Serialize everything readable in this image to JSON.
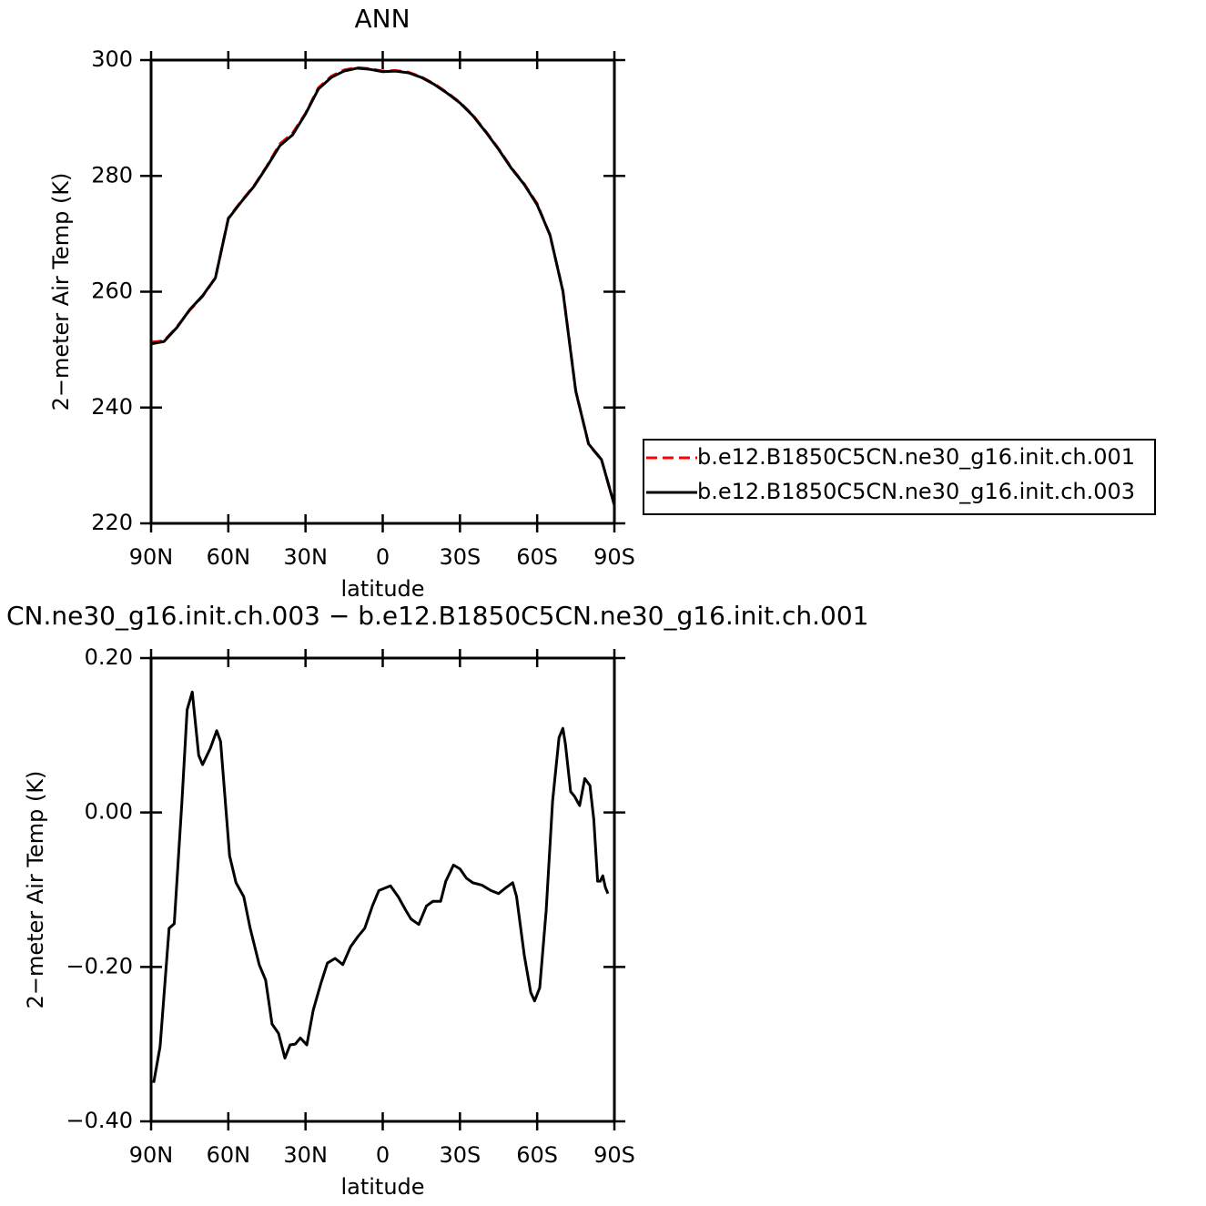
{
  "chart_data": [
    {
      "type": "line",
      "title": "ANN",
      "xlabel": "latitude",
      "ylabel": "2−meter Air Temp (K)",
      "x": [
        90,
        85,
        80,
        75,
        70,
        65,
        60,
        55,
        50,
        45,
        40,
        35,
        30,
        25,
        20,
        15,
        10,
        5,
        0,
        -5,
        -10,
        -15,
        -20,
        -25,
        -30,
        -35,
        -40,
        -45,
        -50,
        -55,
        -60,
        -65,
        -70,
        -75,
        -80,
        -85,
        -90
      ],
      "xlim": [
        90,
        -90
      ],
      "xticks": [
        {
          "value": 90,
          "label": "90N"
        },
        {
          "value": 60,
          "label": "60N"
        },
        {
          "value": 30,
          "label": "30N"
        },
        0,
        {
          "value": -30,
          "label": "30S"
        },
        {
          "value": -60,
          "label": "60S"
        },
        {
          "value": -90,
          "label": "90S"
        }
      ],
      "ylim": [
        220,
        300
      ],
      "yticks": [
        220,
        240,
        260,
        280,
        300
      ],
      "legend": "outside-right",
      "series": [
        {
          "name": "b.e12.B1850C5CN.ne30_g16.init.ch.001",
          "color": "#ff0000",
          "dashed": true,
          "values": [
            251.3,
            251.5,
            253.9,
            256.8,
            259.2,
            262.4,
            272.7,
            275.6,
            278.3,
            281.7,
            285.5,
            287.4,
            290.8,
            295.2,
            297.2,
            298.3,
            298.7,
            298.5,
            298.1,
            298.2,
            297.9,
            297.1,
            295.9,
            294.4,
            292.7,
            290.5,
            287.7,
            284.7,
            281.4,
            278.6,
            275.2,
            269.7,
            260.2,
            242.9,
            233.6,
            231.0,
            223.2
          ]
        },
        {
          "name": "b.e12.B1850C5CN.ne30_g16.init.ch.003",
          "color": "#000000",
          "dashed": false,
          "values": [
            251.0,
            251.4,
            253.8,
            256.9,
            259.3,
            262.4,
            272.6,
            275.5,
            278.2,
            281.6,
            285.2,
            287.1,
            290.7,
            295.0,
            297.0,
            298.1,
            298.6,
            298.4,
            298.0,
            298.1,
            297.8,
            297.0,
            295.8,
            294.3,
            292.6,
            290.4,
            287.6,
            284.6,
            281.3,
            278.5,
            275.0,
            269.8,
            260.1,
            242.8,
            233.7,
            231.0,
            223.1
          ]
        }
      ]
    },
    {
      "type": "line",
      "title": "CN.ne30_g16.init.ch.003 − b.e12.B1850C5CN.ne30_g16.init.ch.001",
      "xlabel": "latitude",
      "ylabel": "2−meter Air Temp (K)",
      "x": [
        89,
        86.5,
        83,
        81,
        78,
        76,
        74,
        71.5,
        70,
        67,
        64.5,
        63,
        59.5,
        57,
        54,
        51.5,
        48,
        45.5,
        43,
        40.5,
        38,
        36,
        34,
        32,
        29.5,
        27,
        24,
        21.5,
        18.5,
        15.5,
        12.5,
        9.5,
        7,
        4,
        1.5,
        -3,
        -6,
        -9,
        -11,
        -14,
        -17,
        -19.5,
        -22.5,
        -24.5,
        -27.5,
        -30,
        -32.5,
        -35,
        -38.5,
        -42,
        -45,
        -48,
        -50.5,
        -52,
        -55,
        -57.5,
        -59,
        -61,
        -63.5,
        -66,
        -68.5,
        -70,
        -71,
        -73,
        -74.5,
        -76.5,
        -78.5,
        -80.5,
        -82,
        -83.5,
        -84.5,
        -85.5,
        -86.5,
        -87.5
      ],
      "xlim": [
        90,
        -90
      ],
      "xticks": [
        {
          "value": 90,
          "label": "90N"
        },
        {
          "value": 60,
          "label": "60N"
        },
        {
          "value": 30,
          "label": "30N"
        },
        0,
        {
          "value": -30,
          "label": "30S"
        },
        {
          "value": -60,
          "label": "60S"
        },
        {
          "value": -90,
          "label": "90S"
        }
      ],
      "ylim": [
        -0.4,
        0.2
      ],
      "yticks": [
        {
          "value": -0.4,
          "label": "−0.40"
        },
        {
          "value": -0.2,
          "label": "−0.20"
        },
        {
          "value": 0,
          "label": "0.00"
        },
        {
          "value": 0.2,
          "label": "0.20"
        }
      ],
      "series": [
        {
          "color": "#000000",
          "values": [
            -0.35,
            -0.303,
            -0.15,
            -0.144,
            0.015,
            0.133,
            0.156,
            0.074,
            0.062,
            0.083,
            0.106,
            0.092,
            -0.056,
            -0.091,
            -0.109,
            -0.15,
            -0.197,
            -0.217,
            -0.274,
            -0.286,
            -0.318,
            -0.301,
            -0.3,
            -0.292,
            -0.301,
            -0.256,
            -0.221,
            -0.195,
            -0.189,
            -0.197,
            -0.174,
            -0.16,
            -0.15,
            -0.121,
            -0.101,
            -0.095,
            -0.109,
            -0.127,
            -0.138,
            -0.145,
            -0.121,
            -0.115,
            -0.115,
            -0.089,
            -0.068,
            -0.073,
            -0.085,
            -0.091,
            -0.094,
            -0.101,
            -0.105,
            -0.097,
            -0.091,
            -0.109,
            -0.185,
            -0.233,
            -0.244,
            -0.227,
            -0.127,
            0.015,
            0.097,
            0.109,
            0.088,
            0.027,
            0.021,
            0.009,
            0.044,
            0.035,
            -0.009,
            -0.089,
            -0.089,
            -0.082,
            -0.097,
            -0.105
          ]
        }
      ]
    }
  ]
}
